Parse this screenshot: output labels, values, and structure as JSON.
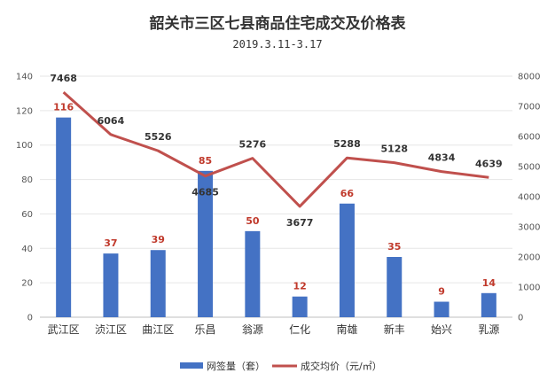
{
  "chart_data": {
    "type": "bar",
    "title": "韶关市三区七县商品住宅成交及价格表",
    "subtitle": "2019.3.11-3.17",
    "categories": [
      "武江区",
      "浈江区",
      "曲江区",
      "乐昌",
      "翁源",
      "仁化",
      "南雄",
      "新丰",
      "始兴",
      "乳源"
    ],
    "series": [
      {
        "name": "网签量（套）",
        "type": "bar",
        "axis": "left",
        "color": "#4472c4",
        "values": [
          116,
          37,
          39,
          85,
          50,
          12,
          66,
          35,
          9,
          14
        ]
      },
      {
        "name": "成交均价（元/㎡）",
        "type": "line",
        "axis": "right",
        "color": "#c0504d",
        "values": [
          7468,
          6064,
          5526,
          4685,
          5276,
          3677,
          5288,
          5128,
          4834,
          4639
        ]
      }
    ],
    "y_left": {
      "min": 0,
      "max": 140,
      "ticks": [
        0,
        20,
        40,
        60,
        80,
        100,
        120,
        140
      ]
    },
    "y_right": {
      "min": 0,
      "max": 8000,
      "ticks": [
        0,
        1000,
        2000,
        3000,
        4000,
        5000,
        6000,
        7000,
        8000
      ]
    },
    "grid": true,
    "legend": "bottom"
  }
}
